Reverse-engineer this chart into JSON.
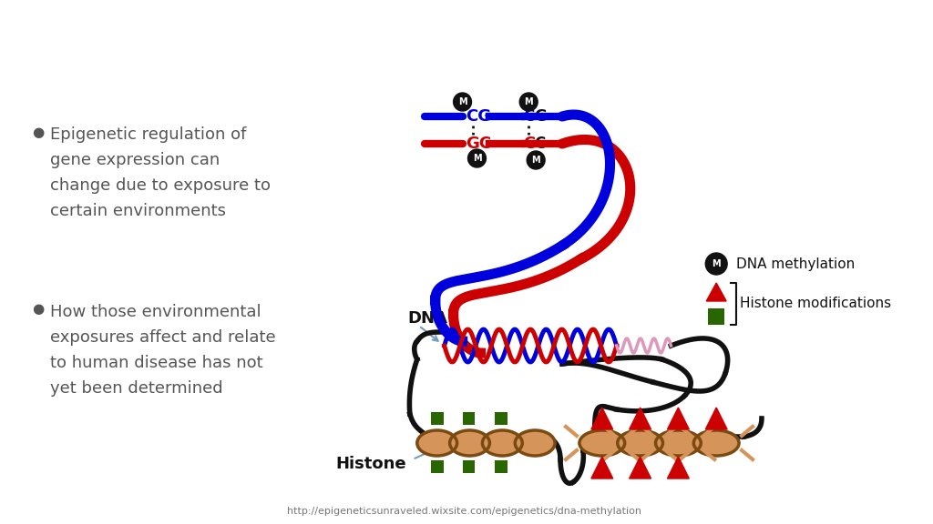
{
  "background_color": "#ffffff",
  "text_color": "#555555",
  "bullet1_lines": [
    "Epigenetic regulation of",
    "gene expression can",
    "change due to exposure to",
    "certain environments"
  ],
  "bullet2_lines": [
    "How those environmental",
    "exposures affect and relate",
    "to human disease has not",
    "yet been determined"
  ],
  "legend_methylation": "DNA methylation",
  "legend_histone": "Histone modifications",
  "url_text": "http://epigeneticsunraveled.wixsite.com/epigenetics/dna-methylation",
  "dna_label": "DNA",
  "histone_label": "Histone",
  "blue_color": "#0000dd",
  "red_color": "#cc0000",
  "black_color": "#111111",
  "tan_color": "#d4945a",
  "tan_outline": "#7a4a10",
  "green_color": "#2a6600",
  "arrow_color": "#7799bb",
  "pink_color": "#dd99bb"
}
